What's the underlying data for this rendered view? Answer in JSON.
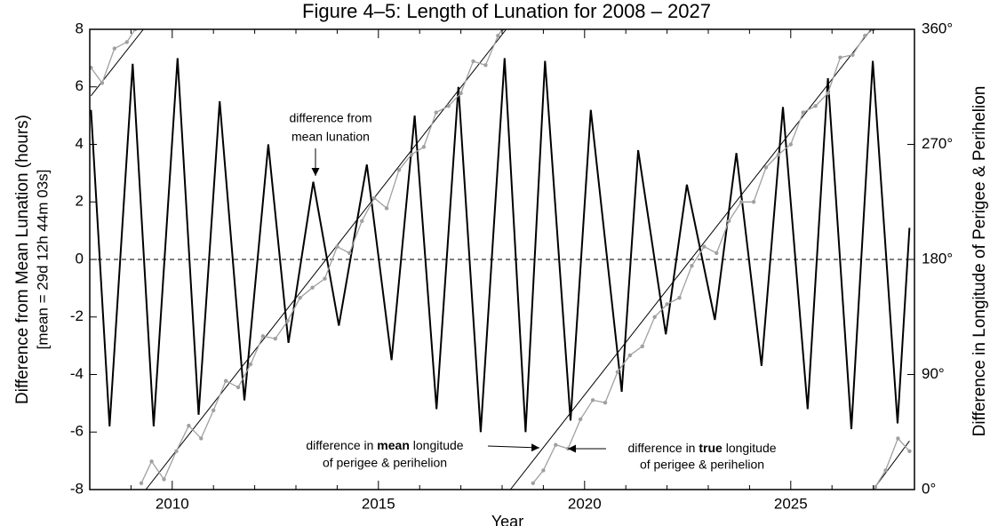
{
  "chart_data": {
    "type": "line",
    "title": "Figure 4–5:  Length of Lunation for 2008 – 2027",
    "xlabel": "Year",
    "ylabel": [
      "Difference from Mean Lunation (hours)",
      "[mean = 29d 12h 44m 03s]"
    ],
    "y2label": "Difference in Longitude of Perigee & Perihelion",
    "xlim": [
      2008,
      2028
    ],
    "xticks": [
      2010,
      2015,
      2020,
      2025
    ],
    "xminorticks": [
      2008,
      2009,
      2011,
      2012,
      2013,
      2014,
      2016,
      2017,
      2018,
      2019,
      2021,
      2022,
      2023,
      2024,
      2026,
      2027
    ],
    "ylim": [
      -8,
      8
    ],
    "yticks": [
      -8,
      -6,
      -4,
      -2,
      0,
      2,
      4,
      6,
      8
    ],
    "y2lim": [
      0,
      360
    ],
    "y2ticks": [
      {
        "value": 0,
        "label": "0°"
      },
      {
        "value": 90,
        "label": "90°"
      },
      {
        "value": 180,
        "label": "180°"
      },
      {
        "value": 270,
        "label": "270°"
      },
      {
        "value": 360,
        "label": "360°"
      }
    ],
    "hline": 0,
    "series": [
      {
        "color": "#000000",
        "axis": "y",
        "x": [
          2008.03,
          2008.48,
          2009.04,
          2009.55,
          2010.13,
          2010.64,
          2011.15,
          2011.75,
          2012.33,
          2012.82,
          2013.42,
          2014.04,
          2014.72,
          2015.32,
          2015.88,
          2016.41,
          2016.94,
          2017.48,
          2018.06,
          2018.57,
          2019.04,
          2019.66,
          2020.15,
          2020.9,
          2021.3,
          2021.97,
          2022.48,
          2023.16,
          2023.68,
          2024.29,
          2024.81,
          2025.41,
          2025.9,
          2026.47,
          2026.99,
          2027.59,
          2027.88
        ],
        "values": [
          5.2,
          -5.8,
          6.8,
          -5.8,
          7.0,
          -5.4,
          5.5,
          -4.9,
          4.0,
          -2.9,
          2.7,
          -2.3,
          3.3,
          -3.5,
          5.0,
          -5.2,
          6.0,
          -6.0,
          7.0,
          -6.0,
          6.9,
          -5.6,
          5.2,
          -4.6,
          3.8,
          -2.6,
          2.6,
          -2.1,
          3.7,
          -3.7,
          5.3,
          -5.2,
          6.3,
          -5.9,
          6.9,
          -5.7,
          1.1
        ]
      },
      {
        "color": "#000000",
        "axis": "y2",
        "x": [
          2008.03,
          2009.3,
          null,
          2009.36,
          2018.1,
          null,
          2018.2,
          2026.95,
          null,
          2027.0,
          2027.88
        ],
        "values": [
          308,
          360,
          null,
          0,
          360,
          null,
          0,
          360,
          null,
          0,
          38
        ]
      },
      {
        "color": "#a0a0a0",
        "axis": "y2",
        "markers": true,
        "x": [
          2008.03,
          2008.3,
          2008.6,
          2008.9,
          2009.1,
          null,
          2009.25,
          2009.5,
          2009.8,
          2010.1,
          2010.4,
          2010.7,
          2011.0,
          2011.3,
          2011.6,
          2011.9,
          2012.2,
          2012.5,
          2012.8,
          2013.1,
          2013.4,
          2013.7,
          2014.0,
          2014.3,
          2014.6,
          2014.9,
          2015.2,
          2015.5,
          2015.8,
          2016.1,
          2016.4,
          2016.7,
          2017.0,
          2017.3,
          2017.6,
          2017.9,
          2018.0,
          null,
          2018.75,
          2019.0,
          2019.3,
          2019.6,
          2019.9,
          2020.2,
          2020.5,
          2020.8,
          2021.1,
          2021.4,
          2021.7,
          2022.0,
          2022.3,
          2022.6,
          2022.9,
          2023.2,
          2023.5,
          2023.8,
          2024.1,
          2024.4,
          2024.7,
          2025.0,
          2025.3,
          2025.6,
          2025.9,
          2026.2,
          2026.5,
          2026.8,
          2027.0,
          null,
          2027.05,
          2027.3,
          2027.6,
          2027.88
        ],
        "values": [
          330,
          318,
          345,
          350,
          360,
          null,
          5,
          22,
          8,
          30,
          50,
          40,
          62,
          85,
          80,
          98,
          120,
          118,
          132,
          150,
          158,
          165,
          190,
          185,
          210,
          228,
          220,
          250,
          262,
          268,
          295,
          300,
          310,
          335,
          332,
          355,
          360,
          null,
          5,
          15,
          35,
          32,
          55,
          70,
          68,
          92,
          105,
          112,
          135,
          145,
          150,
          175,
          190,
          185,
          210,
          225,
          225,
          252,
          262,
          270,
          295,
          300,
          310,
          338,
          340,
          355,
          360,
          null,
          2,
          15,
          40,
          30
        ]
      }
    ],
    "annotations": [
      {
        "lines": [
          "difference from",
          "mean lunation"
        ]
      },
      {
        "pre": "difference in ",
        "bold": "mean",
        "post": " longitude",
        "line2": "of perigee & perihelion"
      },
      {
        "pre": "difference in ",
        "bold": "true",
        "post": " longitude",
        "line2": "of perigee & perihelion"
      }
    ]
  }
}
